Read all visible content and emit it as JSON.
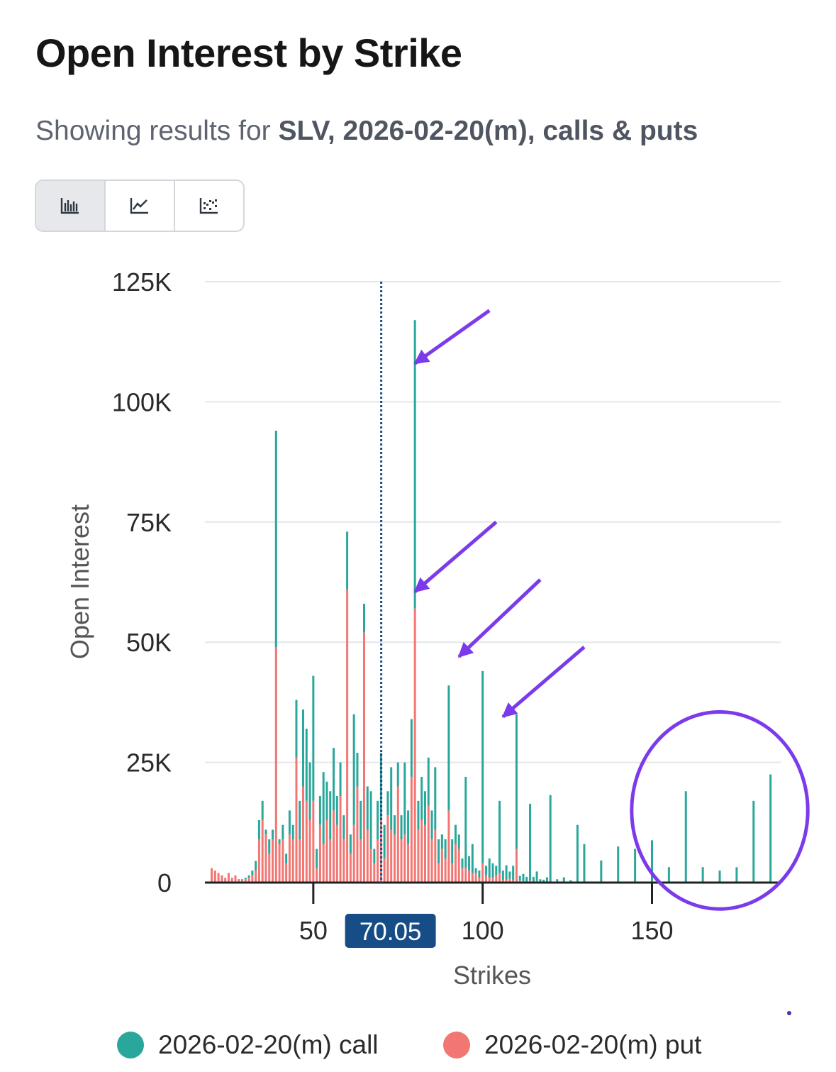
{
  "header": {
    "title": "Open Interest by Strike",
    "subtitle_prefix": "Showing results for",
    "subtitle_bold": "SLV, 2026-02-20(m), calls & puts"
  },
  "toolbar": {
    "buttons": [
      {
        "icon": "bar-chart-icon",
        "active": true
      },
      {
        "icon": "line-chart-icon",
        "active": false
      },
      {
        "icon": "scatter-chart-icon",
        "active": false
      }
    ]
  },
  "colors": {
    "call": "#2aa79b",
    "put": "#f27672",
    "current_price": "#174d86",
    "annotation": "#7b3bea",
    "grid": "#e4e6ea",
    "axis": "#222222"
  },
  "chart_data": {
    "type": "bar",
    "stacked": true,
    "xlabel": "Strikes",
    "ylabel": "Open Interest",
    "xlim": [
      18,
      188
    ],
    "ylim": [
      0,
      125000
    ],
    "yticks": [
      {
        "value": 0,
        "label": "0"
      },
      {
        "value": 25000,
        "label": "25K"
      },
      {
        "value": 50000,
        "label": "50K"
      },
      {
        "value": 75000,
        "label": "75K"
      },
      {
        "value": 100000,
        "label": "100K"
      },
      {
        "value": 125000,
        "label": "125K"
      }
    ],
    "xticks": [
      {
        "value": 50,
        "label": "50"
      },
      {
        "value": 100,
        "label": "100"
      },
      {
        "value": 150,
        "label": "150"
      }
    ],
    "current_price": {
      "value": 70.05,
      "label": "70.05"
    },
    "series": [
      {
        "name": "2026-02-20(m) call",
        "key": "call"
      },
      {
        "name": "2026-02-20(m) put",
        "key": "put"
      }
    ],
    "strikes": [
      20,
      21,
      22,
      23,
      24,
      25,
      26,
      27,
      28,
      29,
      30,
      31,
      32,
      33,
      34,
      35,
      36,
      37,
      38,
      39,
      40,
      41,
      42,
      43,
      44,
      45,
      46,
      47,
      48,
      49,
      50,
      51,
      52,
      53,
      54,
      55,
      56,
      57,
      58,
      59,
      60,
      61,
      62,
      63,
      64,
      65,
      66,
      67,
      68,
      69,
      70,
      71,
      72,
      73,
      74,
      75,
      76,
      77,
      78,
      79,
      80,
      81,
      82,
      83,
      84,
      85,
      86,
      87,
      88,
      89,
      90,
      91,
      92,
      93,
      94,
      95,
      96,
      97,
      98,
      99,
      100,
      101,
      102,
      103,
      104,
      105,
      106,
      107,
      108,
      109,
      110,
      111,
      112,
      113,
      114,
      115,
      116,
      117,
      118,
      119,
      120,
      122,
      124,
      126,
      128,
      130,
      135,
      140,
      145,
      150,
      155,
      160,
      165,
      170,
      175,
      180,
      185
    ],
    "call": [
      0,
      0,
      0,
      0,
      0,
      0,
      0,
      0,
      200,
      200,
      300,
      500,
      1000,
      2000,
      4000,
      4000,
      1000,
      3000,
      2000,
      45000,
      1000,
      3000,
      2000,
      5000,
      3000,
      12000,
      8000,
      16000,
      15000,
      12000,
      26000,
      4000,
      6000,
      15000,
      8000,
      10000,
      13000,
      6000,
      7000,
      5000,
      12000,
      4000,
      23000,
      7000,
      8000,
      6000,
      9000,
      12000,
      3000,
      8000,
      14000,
      7000,
      5000,
      13000,
      4000,
      5000,
      5000,
      15000,
      7000,
      12000,
      60000,
      6000,
      9000,
      7000,
      10000,
      6000,
      13000,
      5000,
      3000,
      4000,
      26000,
      5000,
      4000,
      3000,
      2000,
      19000,
      3000,
      6000,
      1000,
      1500,
      40000,
      2000,
      4000,
      3000,
      2000,
      15000,
      2000,
      3000,
      1500,
      3000,
      28000,
      1000,
      1500,
      1000,
      16000,
      1000,
      2000,
      500,
      500,
      1000,
      18000,
      600,
      1000,
      500,
      12000,
      8000,
      4600,
      7500,
      7000,
      8800,
      3200,
      19000,
      3200,
      2500,
      3200,
      17000,
      22500
    ],
    "put": [
      3000,
      2500,
      2000,
      1500,
      1000,
      2000,
      1000,
      1500,
      500,
      500,
      700,
      1000,
      1500,
      2500,
      9000,
      13000,
      10000,
      6000,
      9000,
      49000,
      8000,
      9000,
      4000,
      10000,
      9000,
      26000,
      9000,
      20000,
      17000,
      13000,
      17000,
      3000,
      12000,
      8000,
      13000,
      9000,
      15000,
      12000,
      18000,
      9000,
      61000,
      6000,
      12000,
      20000,
      9000,
      52000,
      11000,
      7000,
      4000,
      9000,
      13000,
      5000,
      14000,
      11000,
      10000,
      20000,
      9000,
      10000,
      8000,
      22000,
      57000,
      11000,
      13000,
      12000,
      16000,
      9000,
      11000,
      4000,
      7000,
      5000,
      15000,
      4000,
      8000,
      7000,
      3000,
      3000,
      2500,
      2000,
      2000,
      1000,
      4000,
      1500,
      1000,
      1000,
      1500,
      2000,
      500,
      600,
      800,
      500,
      7000,
      400,
      300,
      200,
      400,
      200,
      300,
      200,
      100,
      100,
      200,
      100,
      100,
      0,
      0,
      0,
      0,
      0,
      0,
      0,
      0,
      0,
      0,
      0,
      0,
      0,
      0
    ]
  },
  "legend": {
    "call_label": "2026-02-20(m) call",
    "put_label": "2026-02-20(m) put"
  },
  "annotations": {
    "arrows": [
      {
        "from_strike": 102,
        "from_value": 119000,
        "to_strike": 80,
        "to_value": 108000
      },
      {
        "from_strike": 104,
        "from_value": 75000,
        "to_strike": 80,
        "to_value": 60500
      },
      {
        "from_strike": 117,
        "from_value": 63000,
        "to_strike": 93,
        "to_value": 47000
      },
      {
        "from_strike": 130,
        "from_value": 49000,
        "to_strike": 106,
        "to_value": 34500
      }
    ],
    "circle": {
      "center_strike": 170,
      "center_value": 15000,
      "radius_strikes": 26,
      "radius_value": 20500
    }
  }
}
